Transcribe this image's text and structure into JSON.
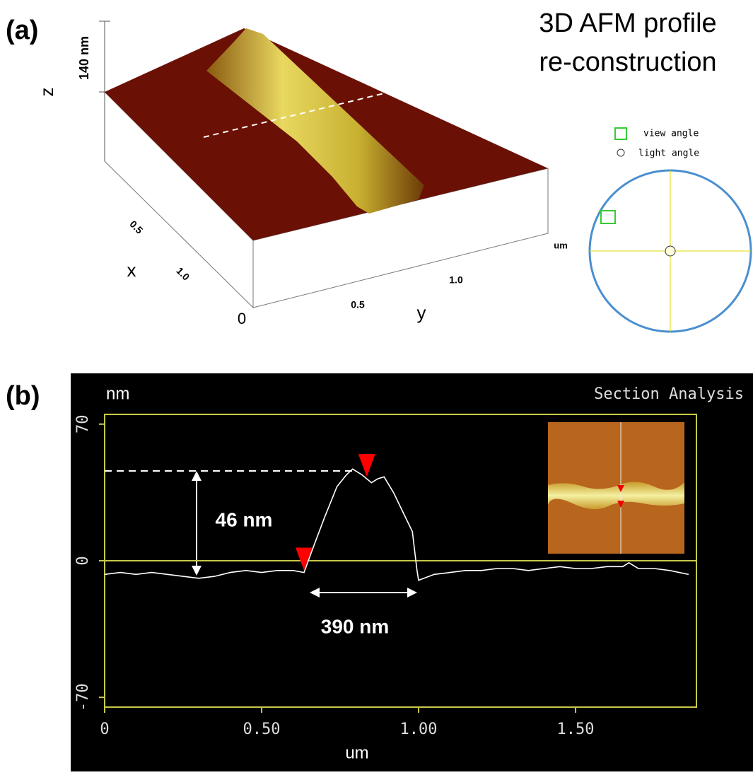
{
  "panel_a": {
    "label": "(a)",
    "title_lines": [
      "3D AFM profile",
      "re-construction"
    ],
    "z_label": "z",
    "z_scale": "140 nm",
    "x_label": "x",
    "x_ticks": [
      "0.5",
      "1.0"
    ],
    "y_label": "y",
    "y_ticks": [
      "0.5",
      "1.0"
    ],
    "origin": "0",
    "unit": "um",
    "view_angle": "view angle",
    "light_angle": "light angle"
  },
  "chart_data": {
    "type": "line",
    "panel_label": "(b)",
    "title": "Section Analysis",
    "y_label": "nm",
    "x_label": "um",
    "color": "#ffffff",
    "x": [
      0,
      0.05,
      0.1,
      0.15,
      0.2,
      0.25,
      0.3,
      0.35,
      0.4,
      0.45,
      0.5,
      0.55,
      0.6,
      0.635,
      0.66,
      0.7,
      0.74,
      0.77,
      0.79,
      0.82,
      0.85,
      0.87,
      0.89,
      0.92,
      0.95,
      0.98,
      0.995,
      1.0,
      1.05,
      1.1,
      1.15,
      1.2,
      1.25,
      1.3,
      1.35,
      1.4,
      1.45,
      1.5,
      1.55,
      1.6,
      1.65,
      1.67,
      1.7,
      1.75,
      1.8,
      1.86
    ],
    "values": [
      -7,
      -6,
      -7,
      -6,
      -7,
      -8,
      -9,
      -8,
      -6,
      -5,
      -6,
      -5,
      -5,
      -6,
      5,
      22,
      38,
      44,
      47,
      44,
      40,
      42,
      43,
      35,
      25,
      15,
      -5,
      -10,
      -7,
      -6,
      -5,
      -5,
      -4,
      -4,
      -5,
      -4,
      -3,
      -4,
      -4,
      -3,
      -3,
      -1,
      -4,
      -4,
      -5,
      -7
    ],
    "xlim": [
      0,
      1.885
    ],
    "ylim": [
      -75,
      75
    ],
    "yticks": [
      70,
      0,
      -70
    ],
    "xticks": [
      0,
      {
        "value": 0.5,
        "label": "0.50"
      },
      {
        "value": 1,
        "label": "1.00"
      },
      {
        "value": 1.5,
        "label": "1.50"
      }
    ],
    "cursors_x": [
      0.635,
      0.835
    ],
    "height_annotation": "46 nm",
    "width_annotation": "390 nm"
  }
}
